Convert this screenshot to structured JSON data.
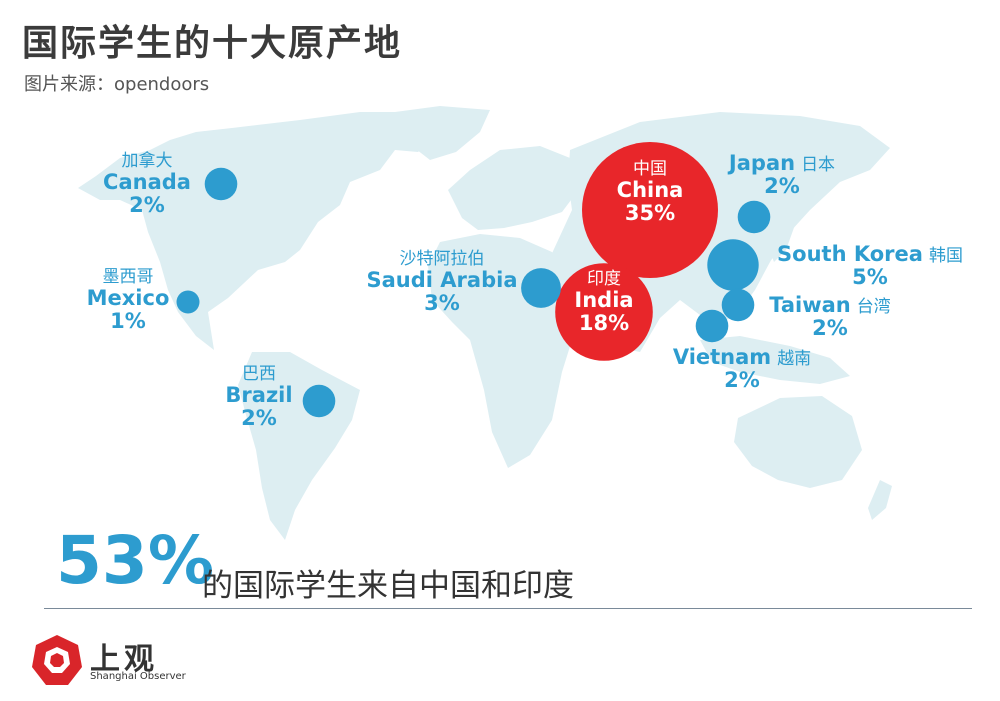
{
  "title": "国际学生的十大原产地",
  "source": "图片来源：opendoors",
  "colors": {
    "highlight": "#e8262a",
    "accent": "#2d9ccf",
    "land": "#ddeef2"
  },
  "countries": [
    {
      "cn": "中国",
      "en": "China",
      "percent": "35%",
      "value": 35,
      "highlight": true
    },
    {
      "cn": "印度",
      "en": "India",
      "percent": "18%",
      "value": 18,
      "highlight": true
    },
    {
      "cn": "韩国",
      "en": "South Korea",
      "percent": "5%",
      "value": 5,
      "highlight": false
    },
    {
      "cn": "沙特阿拉伯",
      "en": "Saudi Arabia",
      "percent": "3%",
      "value": 3,
      "highlight": false
    },
    {
      "cn": "加拿大",
      "en": "Canada",
      "percent": "2%",
      "value": 2,
      "highlight": false
    },
    {
      "cn": "巴西",
      "en": "Brazil",
      "percent": "2%",
      "value": 2,
      "highlight": false
    },
    {
      "cn": "日本",
      "en": "Japan",
      "percent": "2%",
      "value": 2,
      "highlight": false
    },
    {
      "cn": "台湾",
      "en": "Taiwan",
      "percent": "2%",
      "value": 2,
      "highlight": false
    },
    {
      "cn": "越南",
      "en": "Vietnam",
      "percent": "2%",
      "value": 2,
      "highlight": false
    },
    {
      "cn": "墨西哥",
      "en": "Mexico",
      "percent": "1%",
      "value": 1,
      "highlight": false
    }
  ],
  "summary": {
    "stat": "53%",
    "text": "的国际学生来自中国和印度"
  },
  "logo": {
    "cn": "上观",
    "en": "Shanghai Observer"
  }
}
